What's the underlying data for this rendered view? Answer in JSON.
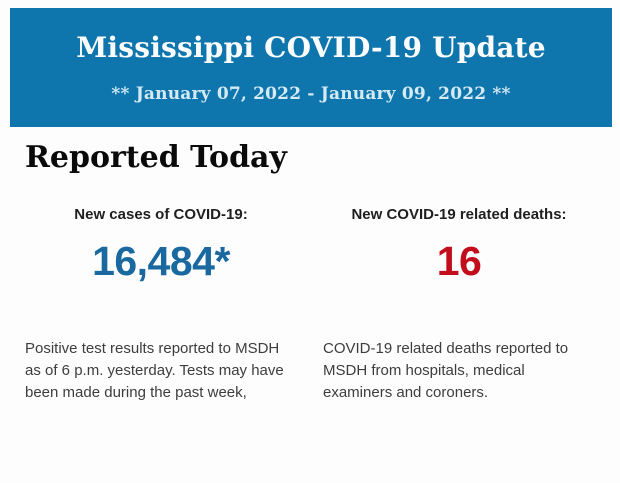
{
  "header": {
    "title": "Mississippi COVID-19 Update",
    "subtitle": "** January 07, 2022 - January 09, 2022 **",
    "background_color": "#0e76ad",
    "title_color": "#fbfdfe",
    "subtitle_color": "#d5eaf5"
  },
  "section": {
    "heading": "Reported Today"
  },
  "stats": [
    {
      "label": "New cases of COVID-19:",
      "value": "16,484*",
      "value_color": "#19689f",
      "description": "Positive test results reported to MSDH as of 6 p.m. yesterday. Tests may have been made during the past week,"
    },
    {
      "label": "New COVID-19 related deaths:",
      "value": "16",
      "value_color": "#c20e1c",
      "description": "COVID-19 related deaths reported to MSDH from hospitals, medical examiners and coroners."
    }
  ]
}
